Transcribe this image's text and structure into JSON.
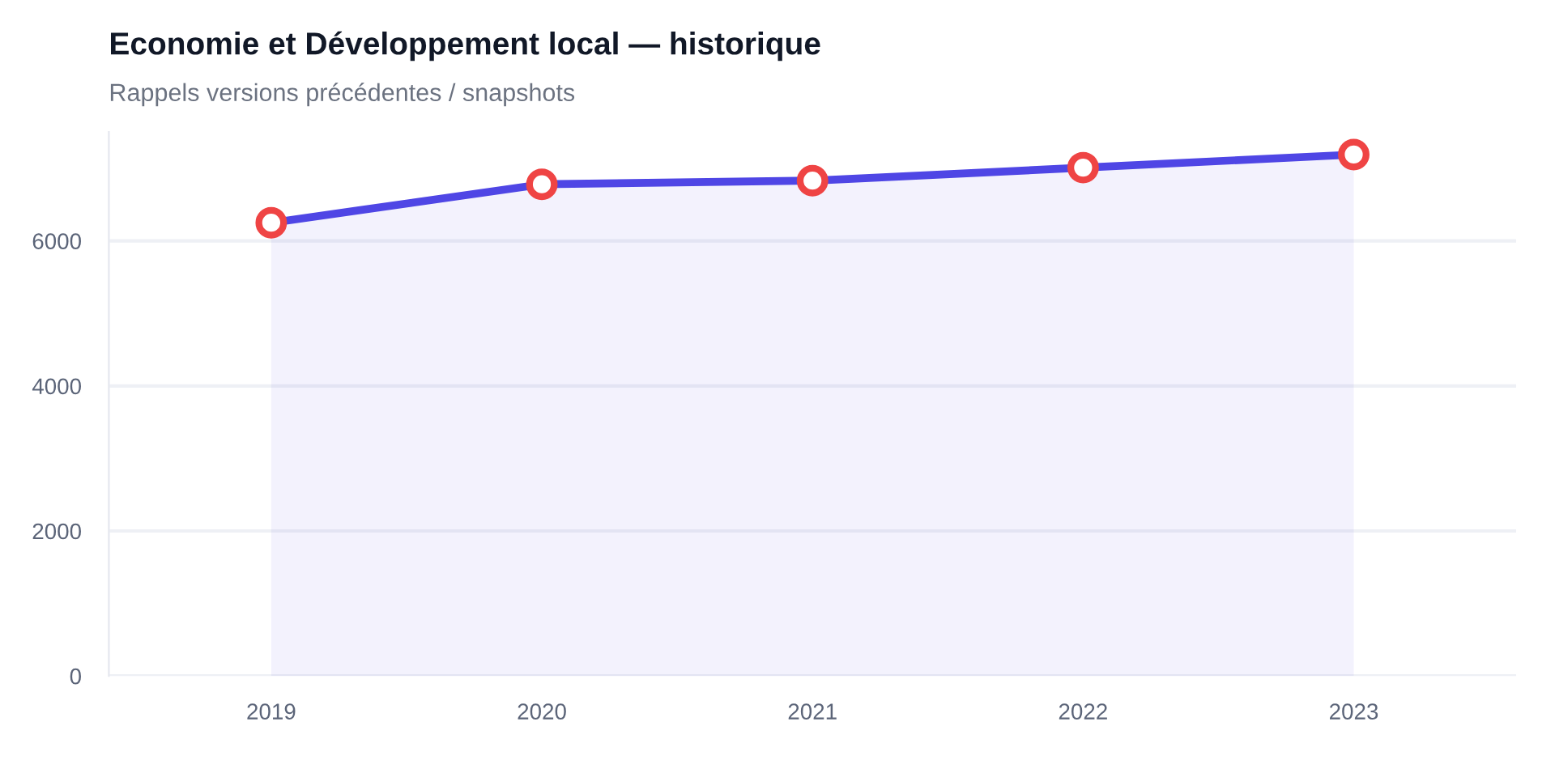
{
  "chart_data": {
    "type": "area",
    "title": "Economie et Développement local — historique",
    "subtitle": "Rappels versions précédentes / snapshots",
    "categories": [
      "2019",
      "2020",
      "2021",
      "2022",
      "2023"
    ],
    "series": [
      {
        "color": "#4f46e5",
        "colors": [
          "#ef4444",
          "#ef4444",
          "#ef4444",
          "#ef4444",
          "#ef4444"
        ],
        "values": [
          6250,
          6780,
          6830,
          7010,
          7190
        ]
      }
    ],
    "ylim": [
      0,
      7500
    ],
    "yticks": [
      0,
      2000,
      4000,
      6000
    ],
    "grid": "y",
    "marker": "circle",
    "line_style": "solid",
    "legend": false
  }
}
